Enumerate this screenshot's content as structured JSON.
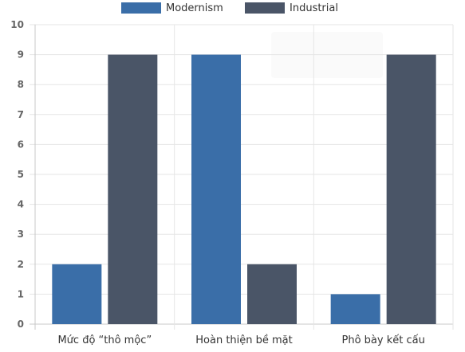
{
  "chart_data": {
    "type": "bar",
    "categories": [
      "Mức độ “thô mộc”",
      "Hoàn thiện bề mặt",
      "Phô bày kết cấu"
    ],
    "series": [
      {
        "name": "Modernism",
        "values": [
          2,
          9,
          1
        ],
        "color": "#3a6ea8"
      },
      {
        "name": "Industrial",
        "values": [
          9,
          2,
          9
        ],
        "color": "#4a5567"
      }
    ],
    "ylim": [
      0,
      10
    ],
    "yticks": [
      0,
      1,
      2,
      3,
      4,
      5,
      6,
      7,
      8,
      9,
      10
    ],
    "grid": true,
    "legend": "top-center",
    "title": "",
    "xlabel": "",
    "ylabel": ""
  },
  "colors": {
    "grid": "#e6e6e6",
    "axis": "#c8c8c8"
  }
}
